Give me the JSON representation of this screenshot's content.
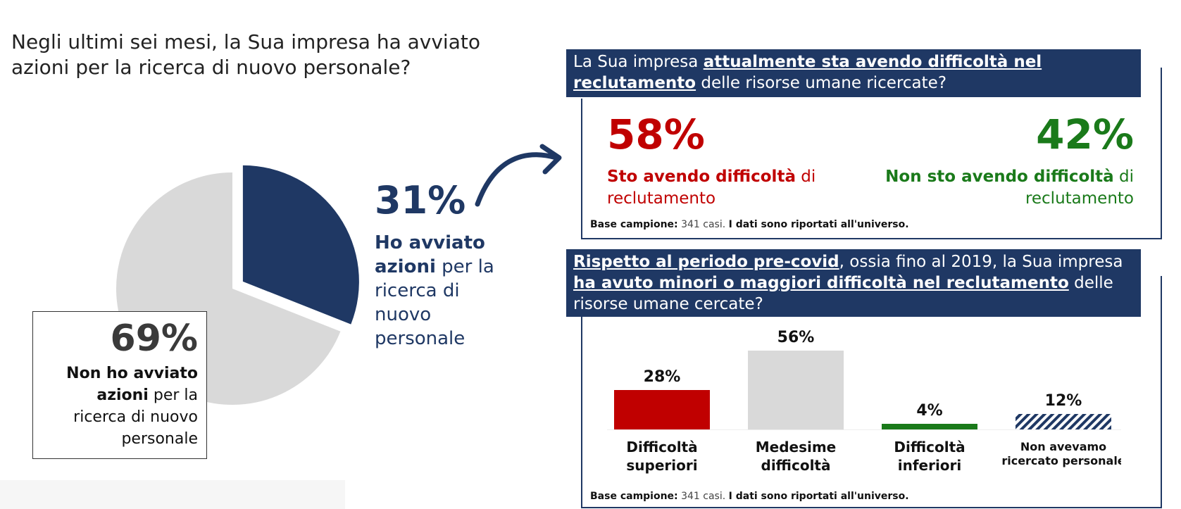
{
  "question": "Negli ultimi sei mesi, la Sua impresa ha avviato azioni per la ricerca di nuovo personale?",
  "colors": {
    "navy": "#1f3864",
    "light_gray": "#d9d9d9",
    "red": "#c00000",
    "green": "#1a7a1a"
  },
  "chart_data": [
    {
      "type": "pie",
      "slices": [
        {
          "label_bold": "Ho avviato azioni",
          "label_rest": "per la ricerca di nuovo personale",
          "pct": "31%",
          "value": 31,
          "color": "#1f3864"
        },
        {
          "label_bold": "Non ho avviato azioni",
          "label_rest": "per la ricerca di nuovo personale",
          "pct": "69%",
          "value": 69,
          "color": "#d9d9d9"
        }
      ]
    },
    {
      "type": "bar",
      "categories": [
        "Difficoltà superiori",
        "Medesime difficoltà",
        "Difficoltà inferiori",
        "Non avevamo ricercato personale"
      ],
      "values": [
        28,
        56,
        4,
        12
      ],
      "value_labels": [
        "28%",
        "56%",
        "4%",
        "12%"
      ],
      "colors": [
        "#c00000",
        "#d9d9d9",
        "#1a7a1a",
        "hatch-navy"
      ]
    }
  ],
  "panel1": {
    "q_pre": "La Sua impresa ",
    "q_emph": "attualmente sta avendo difficoltà nel reclutamento",
    "q_post": " delle risorse umane ricercate?",
    "yes_pct": "58%",
    "yes_bold": "Sto avendo difficoltà",
    "yes_rest": " di reclutamento",
    "no_pct": "42%",
    "no_bold": "Non sto avendo difficoltà",
    "no_rest": " di reclutamento",
    "base_bold": "Base campione:",
    "base_n": " 341 casi. ",
    "base_note": "I dati sono riportati all'universo."
  },
  "panel2": {
    "q_emph1": "Rispetto al periodo pre-covid",
    "q_mid": ", ossia fino al 2019, la Sua impresa ",
    "q_emph2": "ha avuto minori o maggiori difficoltà nel reclutamento",
    "q_post": " delle risorse umane cercate?",
    "base_bold": "Base campione:",
    "base_n": " 341 casi. ",
    "base_note": "I dati sono riportati all'universo."
  }
}
